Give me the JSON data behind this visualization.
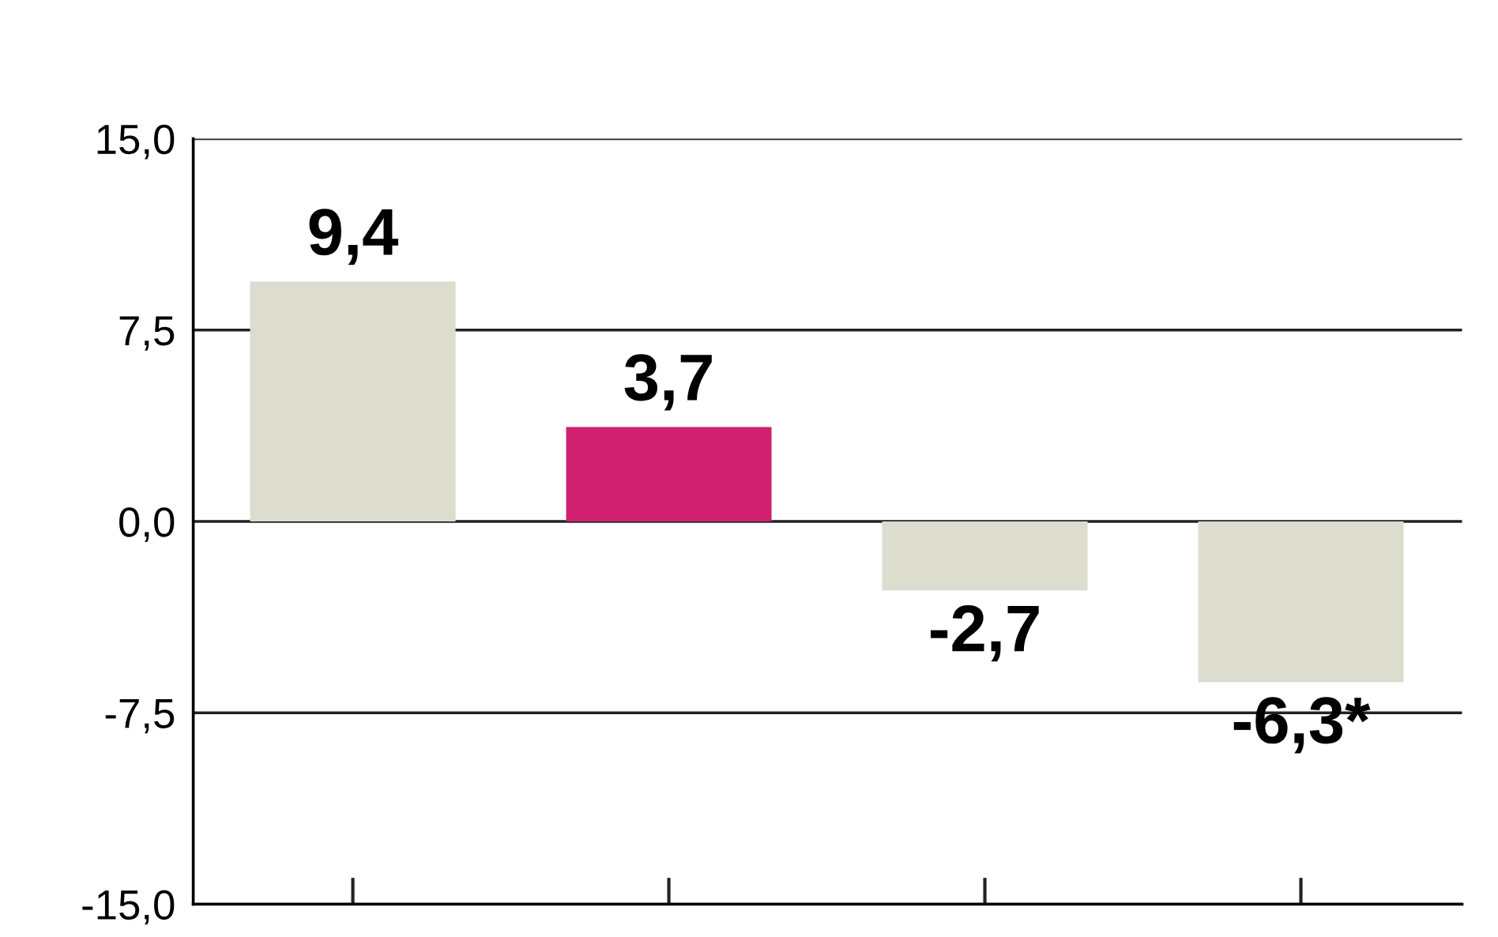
{
  "chart_data": {
    "type": "bar",
    "categories": [
      null,
      null,
      null,
      null
    ],
    "values": [
      9.4,
      3.7,
      -2.7,
      -6.3
    ],
    "colors": [
      "#dcdccf",
      "#d0206e",
      "#dcdccf",
      "#dcdccf"
    ],
    "value_labels": [
      "9,4",
      "3,7",
      "-2,7",
      "-6,3*"
    ],
    "ylim": [
      -15,
      15
    ],
    "yticks": [
      {
        "value": -15,
        "label": "-15,0"
      },
      {
        "value": -7.5,
        "label": "-7,5"
      },
      {
        "value": 0,
        "label": "0,0"
      },
      {
        "value": 7.5,
        "label": "7,5"
      },
      {
        "value": 15,
        "label": "15,0"
      }
    ],
    "grid": "y",
    "tick_labels": "y"
  }
}
